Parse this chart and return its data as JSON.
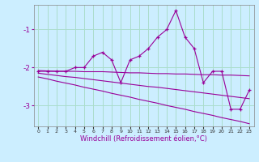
{
  "hours": [
    0,
    1,
    2,
    3,
    4,
    5,
    6,
    7,
    8,
    9,
    10,
    11,
    12,
    13,
    14,
    15,
    16,
    17,
    18,
    19,
    20,
    21,
    22,
    23
  ],
  "windchill": [
    -2.1,
    -2.1,
    -2.1,
    -2.1,
    -2.0,
    -2.0,
    -1.7,
    -1.6,
    -1.8,
    -2.4,
    -1.8,
    -1.7,
    -1.5,
    -1.2,
    -1.0,
    -0.5,
    -1.2,
    -1.5,
    -2.4,
    -2.1,
    -2.1,
    -3.1,
    -3.1,
    -2.6
  ],
  "line2": [
    -2.08,
    -2.09,
    -2.1,
    -2.1,
    -2.1,
    -2.11,
    -2.11,
    -2.11,
    -2.12,
    -2.13,
    -2.14,
    -2.14,
    -2.15,
    -2.16,
    -2.16,
    -2.17,
    -2.17,
    -2.18,
    -2.19,
    -2.19,
    -2.2,
    -2.2,
    -2.21,
    -2.22
  ],
  "line3": [
    -2.15,
    -2.18,
    -2.21,
    -2.24,
    -2.26,
    -2.29,
    -2.32,
    -2.35,
    -2.38,
    -2.41,
    -2.44,
    -2.47,
    -2.5,
    -2.52,
    -2.55,
    -2.58,
    -2.61,
    -2.64,
    -2.67,
    -2.7,
    -2.73,
    -2.76,
    -2.79,
    -2.82
  ],
  "line4": [
    -2.25,
    -2.3,
    -2.36,
    -2.41,
    -2.46,
    -2.52,
    -2.57,
    -2.62,
    -2.68,
    -2.73,
    -2.78,
    -2.84,
    -2.89,
    -2.94,
    -3.0,
    -3.05,
    -3.1,
    -3.16,
    -3.21,
    -3.26,
    -3.32,
    -3.37,
    -3.42,
    -3.48
  ],
  "line_color": "#990099",
  "bg_color": "#cceeff",
  "grid_color": "#aaddcc",
  "xlabel": "Windchill (Refroidissement éolien,°C)",
  "ylim": [
    -3.55,
    -0.35
  ],
  "xlim": [
    -0.5,
    23.5
  ],
  "yticks": [
    -3,
    -2,
    -1
  ],
  "xticks": [
    0,
    1,
    2,
    3,
    4,
    5,
    6,
    7,
    8,
    9,
    10,
    11,
    12,
    13,
    14,
    15,
    16,
    17,
    18,
    19,
    20,
    21,
    22,
    23
  ]
}
